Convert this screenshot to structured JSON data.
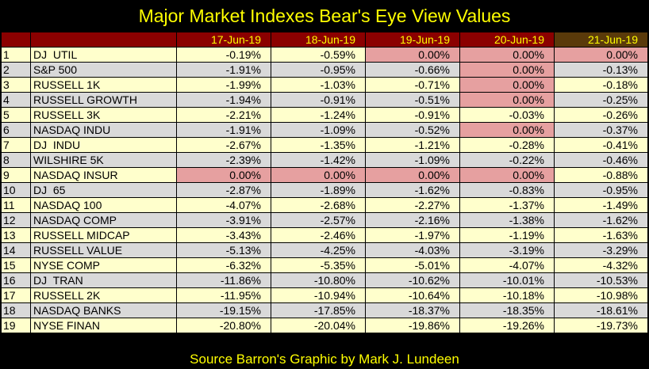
{
  "title": "Major Market Indexes Bear's Eye View Values",
  "footer": "Source Barron's   Graphic by Mark J. Lundeen",
  "columns": [
    "17-Jun-19",
    "18-Jun-19",
    "19-Jun-19",
    "20-Jun-19",
    "21-Jun-19"
  ],
  "colors": {
    "header_bg": "#8b0000",
    "header_text": "#ffff00",
    "last_header_bg": "#5a3a0a",
    "odd_row": "#ffffcc",
    "even_row": "#d9d9d9",
    "highlight": "#e6a0a0"
  },
  "rows": [
    {
      "rank": "1",
      "name": "DJ  UTIL",
      "values": [
        "-0.19%",
        "-0.59%",
        "0.00%",
        "0.00%",
        "0.00%"
      ],
      "highlight": [
        false,
        false,
        true,
        true,
        true
      ]
    },
    {
      "rank": "2",
      "name": "S&P 500",
      "values": [
        "-1.91%",
        "-0.95%",
        "-0.66%",
        "0.00%",
        "-0.13%"
      ],
      "highlight": [
        false,
        false,
        false,
        true,
        false
      ]
    },
    {
      "rank": "3",
      "name": "RUSSELL 1K",
      "values": [
        "-1.99%",
        "-1.03%",
        "-0.71%",
        "0.00%",
        "-0.18%"
      ],
      "highlight": [
        false,
        false,
        false,
        true,
        false
      ]
    },
    {
      "rank": "4",
      "name": "RUSSELL GROWTH",
      "values": [
        "-1.94%",
        "-0.91%",
        "-0.51%",
        "0.00%",
        "-0.25%"
      ],
      "highlight": [
        false,
        false,
        false,
        true,
        false
      ]
    },
    {
      "rank": "5",
      "name": "RUSSELL 3K",
      "values": [
        "-2.21%",
        "-1.24%",
        "-0.91%",
        "-0.03%",
        "-0.26%"
      ],
      "highlight": [
        false,
        false,
        false,
        false,
        false
      ]
    },
    {
      "rank": "6",
      "name": "NASDAQ INDU",
      "values": [
        "-1.91%",
        "-1.09%",
        "-0.52%",
        "0.00%",
        "-0.37%"
      ],
      "highlight": [
        false,
        false,
        false,
        true,
        false
      ]
    },
    {
      "rank": "7",
      "name": "DJ  INDU",
      "values": [
        "-2.67%",
        "-1.35%",
        "-1.21%",
        "-0.28%",
        "-0.41%"
      ],
      "highlight": [
        false,
        false,
        false,
        false,
        false
      ]
    },
    {
      "rank": "8",
      "name": "WILSHIRE 5K",
      "values": [
        "-2.39%",
        "-1.42%",
        "-1.09%",
        "-0.22%",
        "-0.46%"
      ],
      "highlight": [
        false,
        false,
        false,
        false,
        false
      ]
    },
    {
      "rank": "9",
      "name": "NASDAQ INSUR",
      "values": [
        "0.00%",
        "0.00%",
        "0.00%",
        "0.00%",
        "-0.88%"
      ],
      "highlight": [
        true,
        true,
        true,
        true,
        false
      ]
    },
    {
      "rank": "10",
      "name": "DJ  65",
      "values": [
        "-2.87%",
        "-1.89%",
        "-1.62%",
        "-0.83%",
        "-0.95%"
      ],
      "highlight": [
        false,
        false,
        false,
        false,
        false
      ]
    },
    {
      "rank": "11",
      "name": "NASDAQ 100",
      "values": [
        "-4.07%",
        "-2.68%",
        "-2.27%",
        "-1.37%",
        "-1.49%"
      ],
      "highlight": [
        false,
        false,
        false,
        false,
        false
      ]
    },
    {
      "rank": "12",
      "name": "NASDAQ COMP",
      "values": [
        "-3.91%",
        "-2.57%",
        "-2.16%",
        "-1.38%",
        "-1.62%"
      ],
      "highlight": [
        false,
        false,
        false,
        false,
        false
      ]
    },
    {
      "rank": "13",
      "name": "RUSSELL MIDCAP",
      "values": [
        "-3.43%",
        "-2.46%",
        "-1.97%",
        "-1.19%",
        "-1.63%"
      ],
      "highlight": [
        false,
        false,
        false,
        false,
        false
      ]
    },
    {
      "rank": "14",
      "name": "RUSSELL VALUE",
      "values": [
        "-5.13%",
        "-4.25%",
        "-4.03%",
        "-3.19%",
        "-3.29%"
      ],
      "highlight": [
        false,
        false,
        false,
        false,
        false
      ]
    },
    {
      "rank": "15",
      "name": "NYSE COMP",
      "values": [
        "-6.32%",
        "-5.35%",
        "-5.01%",
        "-4.07%",
        "-4.32%"
      ],
      "highlight": [
        false,
        false,
        false,
        false,
        false
      ]
    },
    {
      "rank": "16",
      "name": "DJ  TRAN",
      "values": [
        "-11.86%",
        "-10.80%",
        "-10.62%",
        "-10.01%",
        "-10.53%"
      ],
      "highlight": [
        false,
        false,
        false,
        false,
        false
      ]
    },
    {
      "rank": "17",
      "name": "RUSSELL 2K",
      "values": [
        "-11.95%",
        "-10.94%",
        "-10.64%",
        "-10.18%",
        "-10.98%"
      ],
      "highlight": [
        false,
        false,
        false,
        false,
        false
      ]
    },
    {
      "rank": "18",
      "name": "NASDAQ BANKS",
      "values": [
        "-19.15%",
        "-17.85%",
        "-18.37%",
        "-18.35%",
        "-18.61%"
      ],
      "highlight": [
        false,
        false,
        false,
        false,
        false
      ]
    },
    {
      "rank": "19",
      "name": "NYSE FINAN",
      "values": [
        "-20.80%",
        "-20.04%",
        "-19.86%",
        "-19.26%",
        "-19.73%"
      ],
      "highlight": [
        false,
        false,
        false,
        false,
        false
      ]
    }
  ]
}
